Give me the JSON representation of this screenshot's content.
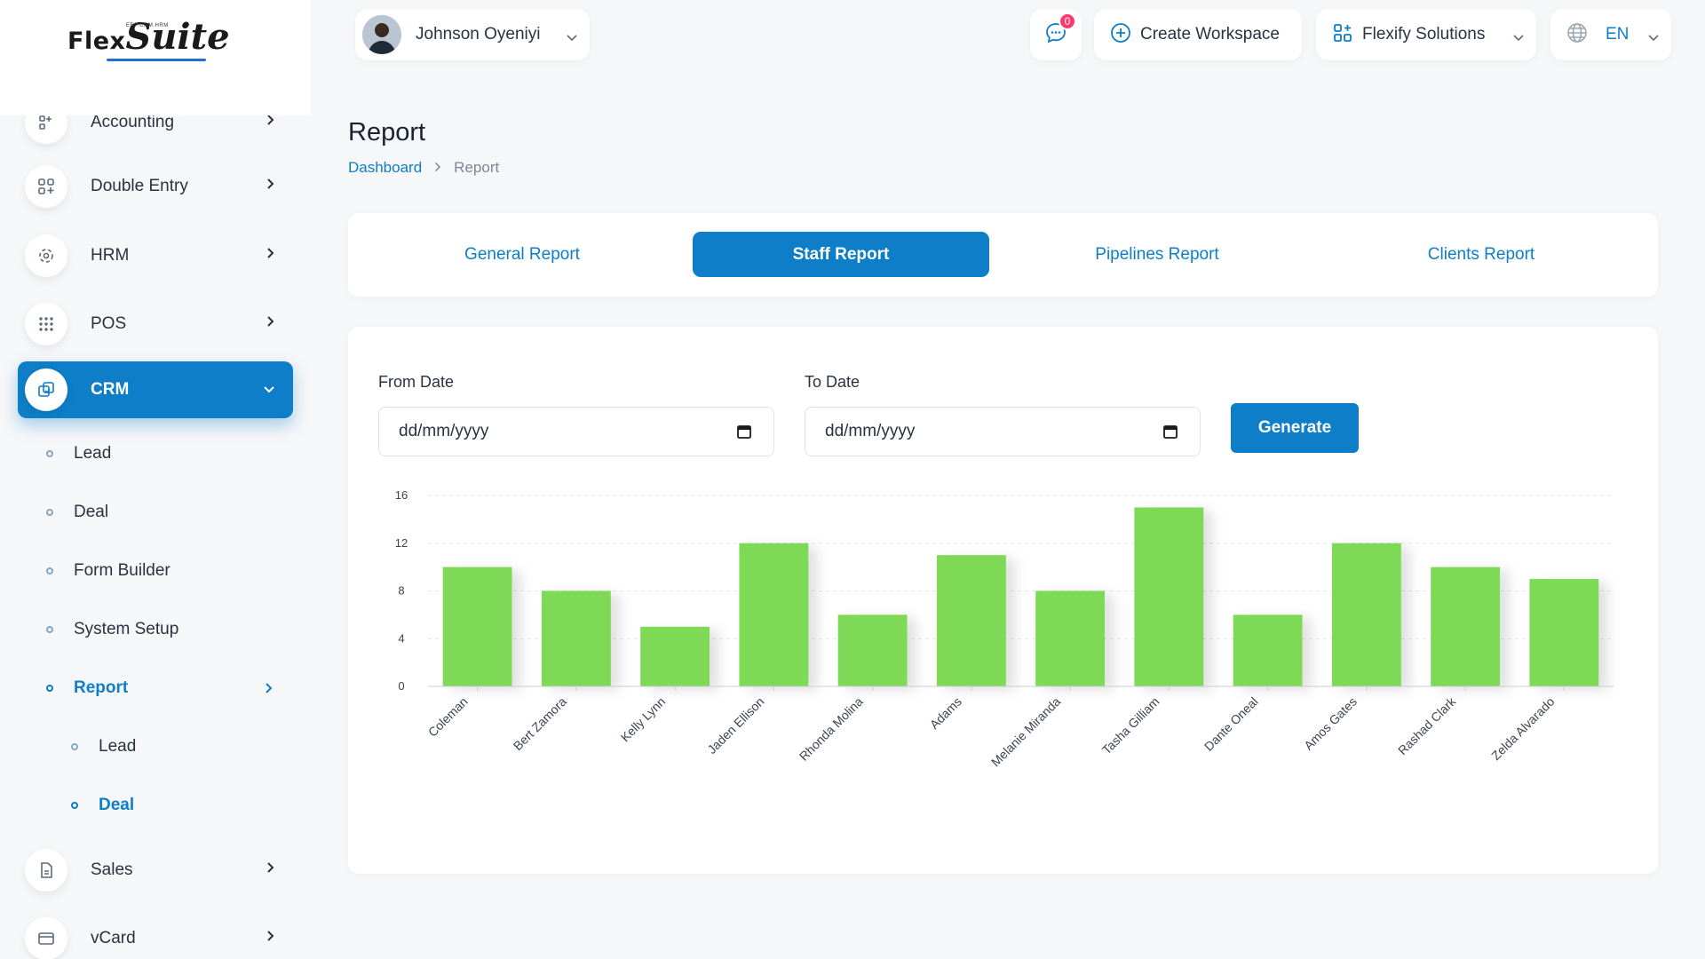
{
  "logo": {
    "part1": "Flex",
    "part2": "Suite",
    "tagline": "ERP.CRM.HRM"
  },
  "sidebar": {
    "items": [
      {
        "label": "Accounting",
        "icon": "accounting-icon"
      },
      {
        "label": "Double Entry",
        "icon": "grid-plus-icon"
      },
      {
        "label": "HRM",
        "icon": "hrm-icon"
      },
      {
        "label": "POS",
        "icon": "dots-grid-icon"
      },
      {
        "label": "CRM",
        "icon": "crm-icon",
        "active": true
      },
      {
        "label": "Sales",
        "icon": "document-icon"
      },
      {
        "label": "vCard",
        "icon": "card-icon"
      }
    ],
    "crm_sub": [
      {
        "label": "Lead"
      },
      {
        "label": "Deal"
      },
      {
        "label": "Form Builder"
      },
      {
        "label": "System Setup"
      },
      {
        "label": "Report",
        "active": true
      }
    ],
    "report_sub": [
      {
        "label": "Lead"
      },
      {
        "label": "Deal",
        "active": true
      }
    ]
  },
  "header": {
    "user_name": "Johnson Oyeniyi",
    "message_count": "0",
    "create_workspace": "Create Workspace",
    "workspace_name": "Flexify Solutions",
    "language": "EN"
  },
  "page": {
    "title": "Report",
    "breadcrumb": {
      "home": "Dashboard",
      "separator": "›",
      "current": "Report"
    }
  },
  "tabs": [
    {
      "label": "General Report"
    },
    {
      "label": "Staff Report",
      "active": true
    },
    {
      "label": "Pipelines Report"
    },
    {
      "label": "Clients Report"
    }
  ],
  "filters": {
    "from_label": "From Date",
    "to_label": "To Date",
    "from_value": "dd/mm/yyyy",
    "to_value": "dd/mm/yyyy",
    "generate_label": "Generate"
  },
  "colors": {
    "accent": "#0d7ec7",
    "bar": "#7ed957",
    "badge": "#ff3a6e"
  },
  "chart_data": {
    "type": "bar",
    "categories": [
      "Coleman",
      "Bert Zamora",
      "Kelly Lynn",
      "Jaden Ellison",
      "Rhonda Molina",
      "Adams",
      "Melanie Miranda",
      "Tasha Gilliam",
      "Dante Oneal",
      "Amos Gates",
      "Rashad Clark",
      "Zelda Alvarado"
    ],
    "values": [
      10,
      8,
      5,
      12,
      6,
      11,
      8,
      15,
      6,
      12,
      10,
      9
    ],
    "yticks": [
      "0",
      "4",
      "8",
      "12",
      "16"
    ],
    "ylim": [
      0,
      16
    ],
    "grid": true
  }
}
